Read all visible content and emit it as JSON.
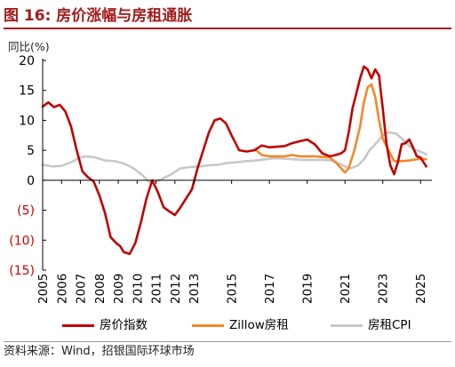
{
  "page": {
    "title": "图 16: 房价涨幅与房租通胀",
    "source": "资料来源：Wind，招银国际环球市场"
  },
  "chart_data": {
    "type": "line",
    "ylabel": "同比(%)",
    "ylim": [
      -15,
      20
    ],
    "y_ticks": [
      {
        "value": 20,
        "label": "20",
        "color": "#000000"
      },
      {
        "value": 15,
        "label": "15",
        "color": "#000000"
      },
      {
        "value": 10,
        "label": "10",
        "color": "#000000"
      },
      {
        "value": 5,
        "label": "5",
        "color": "#000000"
      },
      {
        "value": 0,
        "label": "0",
        "color": "#000000"
      },
      {
        "value": -5,
        "label": "(5)",
        "color": "#d00000"
      },
      {
        "value": -10,
        "label": "(10)",
        "color": "#d00000"
      },
      {
        "value": -15,
        "label": "(15)",
        "color": "#d00000"
      }
    ],
    "xlim": [
      2005,
      2025.6
    ],
    "x_ticks": [
      "2005",
      "2006",
      "2007",
      "2008",
      "2009",
      "2010",
      "2011",
      "2012",
      "2013",
      "2015",
      "2017",
      "2019",
      "2021",
      "2023",
      "2025"
    ],
    "x_tick_years": [
      2005,
      2006,
      2007,
      2008,
      2009,
      2010,
      2011,
      2012,
      2013,
      2015,
      2017,
      2019,
      2021,
      2023,
      2025
    ],
    "grid": false,
    "legend_position": "bottom",
    "series": [
      {
        "name": "房价指数",
        "color": "#c00000",
        "x": [
          2005.0,
          2005.3,
          2005.6,
          2005.9,
          2006.2,
          2006.5,
          2006.8,
          2007.1,
          2007.4,
          2007.7,
          2008.0,
          2008.3,
          2008.6,
          2008.9,
          2009.1,
          2009.3,
          2009.6,
          2009.9,
          2010.2,
          2010.5,
          2010.8,
          2011.1,
          2011.4,
          2011.7,
          2012.0,
          2012.3,
          2012.6,
          2012.9,
          2013.2,
          2013.5,
          2013.8,
          2014.1,
          2014.4,
          2014.7,
          2015.0,
          2015.4,
          2015.8,
          2016.2,
          2016.6,
          2017.0,
          2017.4,
          2017.8,
          2018.2,
          2018.6,
          2019.0,
          2019.4,
          2019.8,
          2020.2,
          2020.5,
          2020.8,
          2021.0,
          2021.2,
          2021.4,
          2021.6,
          2021.8,
          2022.0,
          2022.2,
          2022.4,
          2022.6,
          2022.8,
          2023.0,
          2023.2,
          2023.4,
          2023.6,
          2023.8,
          2024.0,
          2024.2,
          2024.4,
          2024.6,
          2024.8,
          2025.0,
          2025.3
        ],
        "y": [
          12.3,
          13.0,
          12.2,
          12.6,
          11.5,
          9.0,
          5.0,
          1.5,
          0.5,
          -0.2,
          -2.5,
          -5.5,
          -9.5,
          -10.5,
          -11.0,
          -12.0,
          -12.3,
          -10.5,
          -7.0,
          -3.0,
          0.0,
          -2.0,
          -4.5,
          -5.2,
          -5.8,
          -4.5,
          -3.0,
          -1.5,
          2.0,
          5.0,
          8.0,
          10.0,
          10.3,
          9.5,
          7.5,
          5.0,
          4.8,
          5.0,
          5.8,
          5.5,
          5.6,
          5.7,
          6.2,
          6.5,
          6.8,
          6.0,
          4.5,
          4.0,
          4.2,
          4.5,
          5.0,
          8.0,
          12.0,
          14.5,
          17.0,
          19.0,
          18.5,
          17.0,
          18.5,
          17.5,
          12.0,
          6.0,
          2.5,
          1.0,
          3.0,
          6.0,
          6.2,
          6.8,
          5.5,
          4.0,
          3.8,
          2.3
        ]
      },
      {
        "name": "Zillow房租",
        "color": "#f0892b",
        "x": [
          2016.3,
          2016.6,
          2017.0,
          2017.4,
          2017.8,
          2018.2,
          2018.6,
          2019.0,
          2019.4,
          2019.8,
          2020.2,
          2020.5,
          2020.8,
          2021.0,
          2021.2,
          2021.5,
          2021.8,
          2022.0,
          2022.2,
          2022.4,
          2022.6,
          2022.8,
          2023.0,
          2023.3,
          2023.6,
          2024.0,
          2024.4,
          2024.8,
          2025.0,
          2025.3
        ],
        "y": [
          5.0,
          4.2,
          4.0,
          4.0,
          4.0,
          4.2,
          4.0,
          4.0,
          4.0,
          3.9,
          3.8,
          3.0,
          2.0,
          1.3,
          2.0,
          5.0,
          9.0,
          13.0,
          15.5,
          16.0,
          14.0,
          10.0,
          7.0,
          5.0,
          3.2,
          3.2,
          3.3,
          3.5,
          3.6,
          3.5
        ]
      },
      {
        "name": "房租CPI",
        "color": "#c8c8c8",
        "x": [
          2005.0,
          2005.5,
          2006.0,
          2006.5,
          2007.0,
          2007.3,
          2007.8,
          2008.3,
          2008.8,
          2009.3,
          2009.8,
          2010.3,
          2010.6,
          2010.9,
          2011.3,
          2011.8,
          2012.3,
          2012.8,
          2013.3,
          2013.8,
          2014.3,
          2014.8,
          2015.3,
          2015.8,
          2016.3,
          2016.8,
          2017.3,
          2017.8,
          2018.3,
          2018.8,
          2019.3,
          2019.8,
          2020.3,
          2020.7,
          2021.0,
          2021.3,
          2021.7,
          2022.0,
          2022.3,
          2022.6,
          2023.0,
          2023.3,
          2023.7,
          2024.0,
          2024.3,
          2024.6,
          2025.0,
          2025.3
        ],
        "y": [
          2.6,
          2.3,
          2.4,
          3.0,
          3.8,
          4.0,
          3.8,
          3.3,
          3.2,
          2.8,
          2.0,
          0.8,
          -0.2,
          -0.3,
          0.2,
          1.0,
          2.0,
          2.2,
          2.3,
          2.5,
          2.6,
          2.9,
          3.0,
          3.2,
          3.3,
          3.5,
          3.7,
          3.6,
          3.5,
          3.4,
          3.4,
          3.4,
          3.3,
          2.8,
          2.3,
          2.0,
          2.5,
          3.5,
          5.0,
          6.0,
          7.5,
          8.0,
          7.8,
          7.0,
          6.0,
          5.2,
          4.8,
          4.3
        ]
      }
    ]
  }
}
